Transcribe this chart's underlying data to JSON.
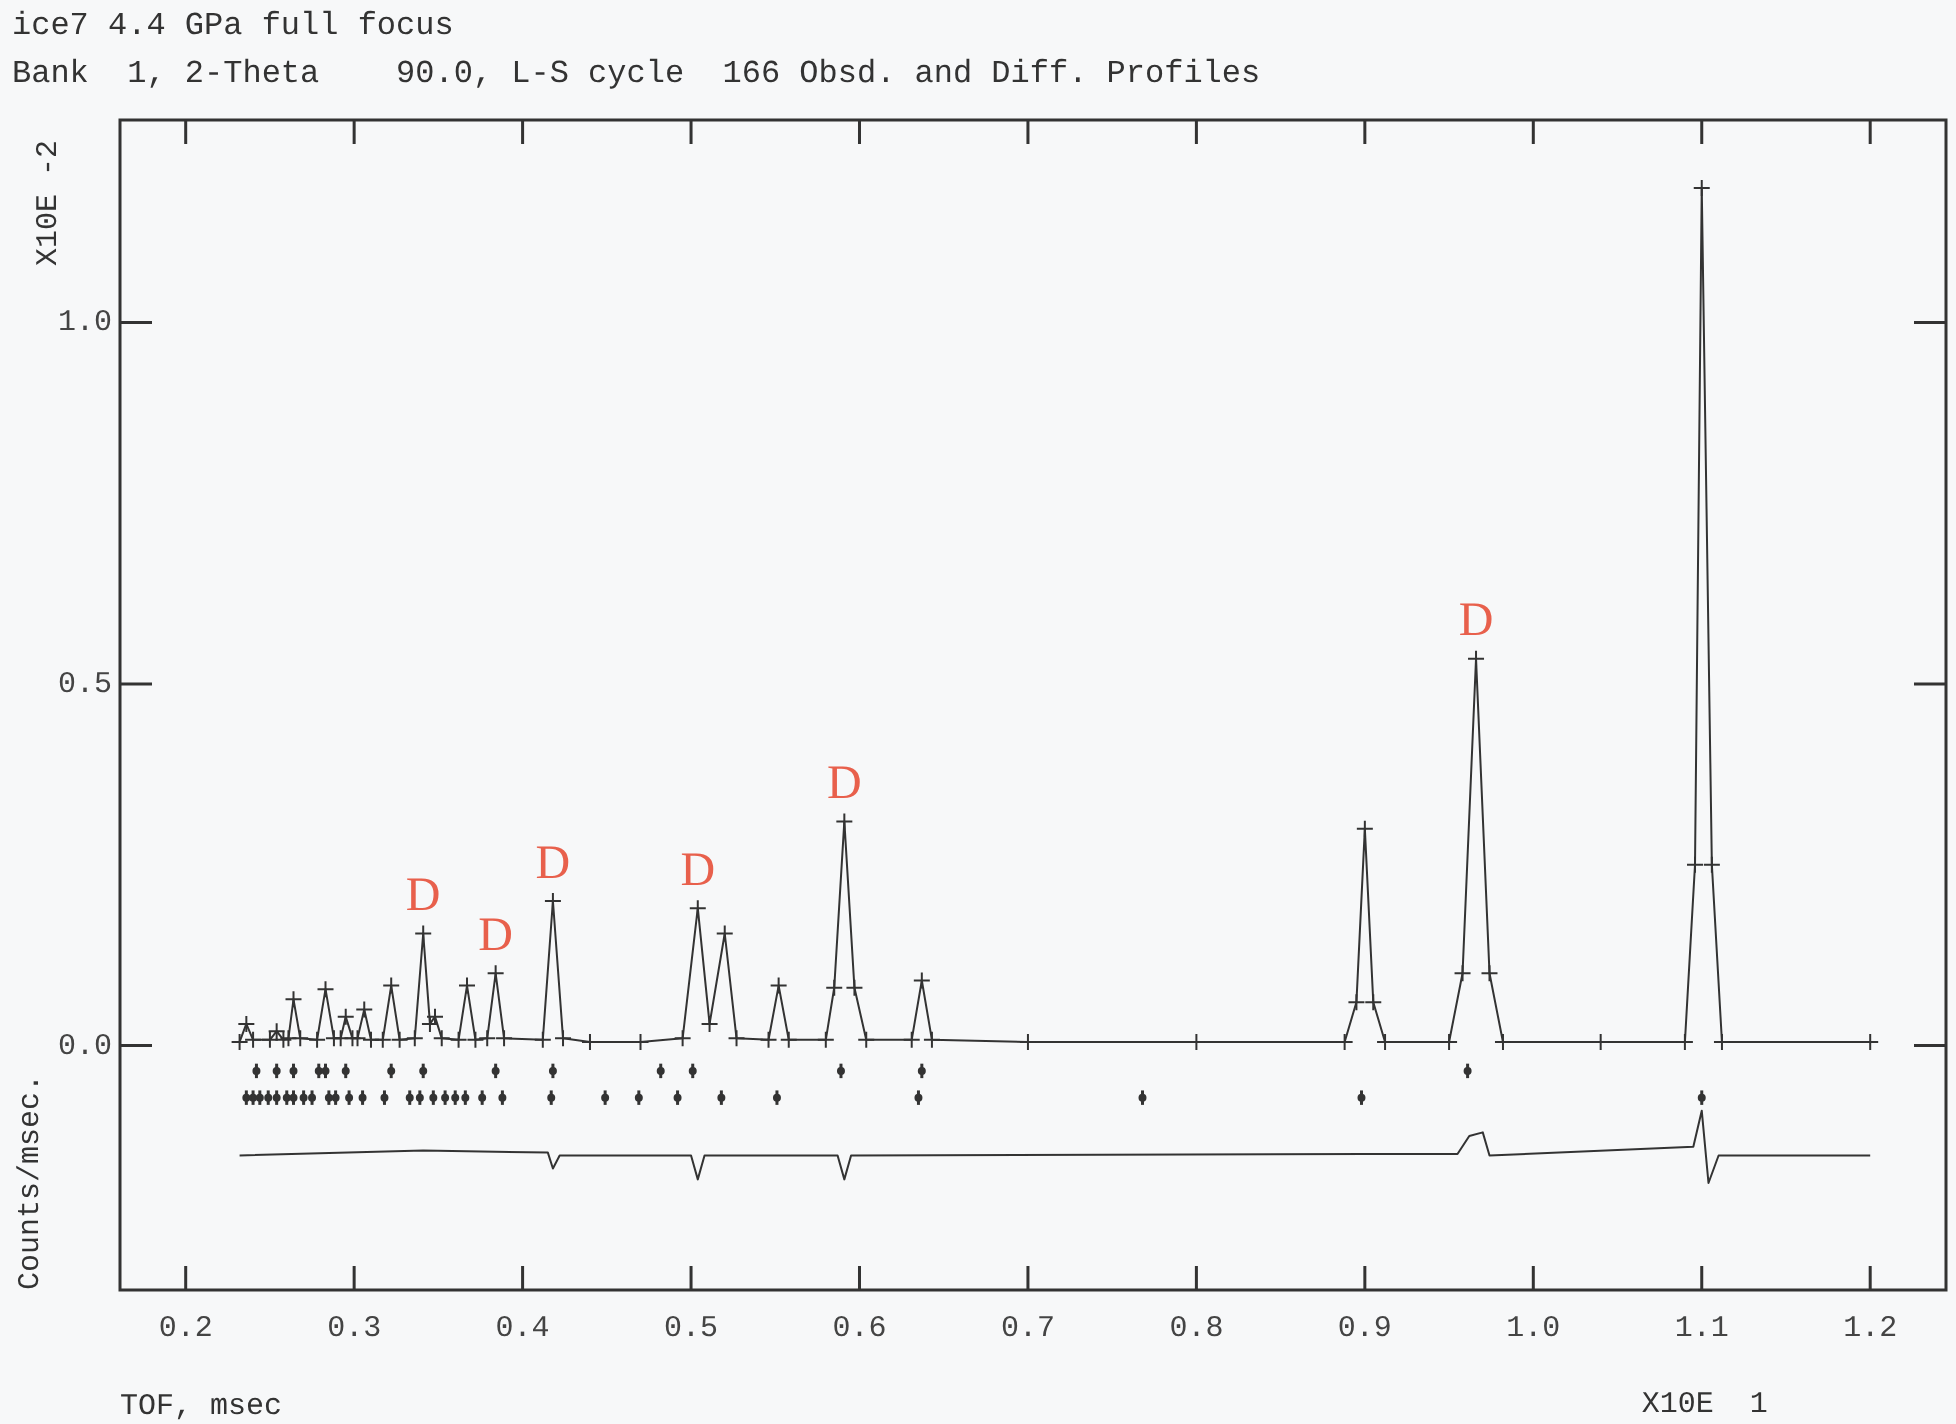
{
  "chart_data": {
    "type": "line",
    "title": "ice7 4.4 GPa full focus",
    "subtitle": "Bank  1, 2-Theta    90.0, L-S cycle  166 Obsd. and Diff. Profiles",
    "xlabel": "TOF, msec",
    "ylabel": "Counts/msec.",
    "xlim": [
      0.161,
      1.245
    ],
    "ylim": [
      -0.338,
      1.28
    ],
    "xticks": [
      0.2,
      0.3,
      0.4,
      0.5,
      0.6,
      0.7,
      0.8,
      0.9,
      {
        "value": 1,
        "label": "1.0"
      },
      1.1,
      1.2
    ],
    "yticks": [
      {
        "value": 0,
        "label": "0.0"
      },
      0.5,
      {
        "value": 1,
        "label": "1.0"
      }
    ],
    "grid": false,
    "legend": false,
    "series": [
      {
        "marker": "cross",
        "color": "#333333",
        "x": [
          0.232,
          0.236,
          0.24,
          0.25,
          0.254,
          0.258,
          0.261,
          0.264,
          0.268,
          0.278,
          0.283,
          0.288,
          0.292,
          0.295,
          0.299,
          0.302,
          0.306,
          0.31,
          0.317,
          0.322,
          0.327,
          0.336,
          0.341,
          0.345,
          0.348,
          0.352,
          0.362,
          0.367,
          0.372,
          0.379,
          0.384,
          0.389,
          0.412,
          0.418,
          0.424,
          0.44,
          0.47,
          0.495,
          0.504,
          0.511,
          0.52,
          0.527,
          0.546,
          0.552,
          0.558,
          0.58,
          0.585,
          0.591,
          0.597,
          0.604,
          0.631,
          0.637,
          0.643,
          0.7,
          0.8,
          0.888,
          0.895,
          0.9,
          0.905,
          0.912,
          0.95,
          0.958,
          0.966,
          0.974,
          0.982,
          1.04,
          1.09,
          1.096,
          1.1,
          1.106,
          1.112,
          1.2
        ],
        "values": [
          0.005,
          0.03,
          0.008,
          0.008,
          0.02,
          0.008,
          0.01,
          0.064,
          0.01,
          0.008,
          0.078,
          0.01,
          0.01,
          0.04,
          0.01,
          0.01,
          0.05,
          0.008,
          0.008,
          0.083,
          0.008,
          0.01,
          0.155,
          0.03,
          0.04,
          0.01,
          0.008,
          0.083,
          0.008,
          0.01,
          0.1,
          0.01,
          0.008,
          0.2,
          0.01,
          0.005,
          0.005,
          0.01,
          0.19,
          0.03,
          0.155,
          0.01,
          0.008,
          0.083,
          0.008,
          0.008,
          0.08,
          0.31,
          0.08,
          0.008,
          0.008,
          0.09,
          0.008,
          0.005,
          0.005,
          0.005,
          0.06,
          0.3,
          0.06,
          0.005,
          0.005,
          0.1,
          0.535,
          0.1,
          0.005,
          0.005,
          0.005,
          0.25,
          1.186,
          0.25,
          0.005,
          0.005
        ]
      },
      {
        "type": "scatter",
        "marker": "circle",
        "color": "#333333",
        "x": [
          0.242,
          0.254,
          0.264,
          0.279,
          0.283,
          0.295,
          0.322,
          0.341,
          0.384,
          0.418,
          0.482,
          0.501,
          0.589,
          0.637,
          0.961
        ],
        "values": [
          -0.035,
          -0.035,
          -0.035,
          -0.035,
          -0.035,
          -0.035,
          -0.035,
          -0.035,
          -0.035,
          -0.035,
          -0.035,
          -0.035,
          -0.035,
          -0.035,
          -0.035
        ],
        "errors": [
          0.01,
          0.01,
          0.01,
          0.01,
          0.01,
          0.01,
          0.01,
          0.01,
          0.01,
          0.01,
          0.01,
          0.01,
          0.01,
          0.01,
          0.01
        ]
      },
      {
        "type": "scatter",
        "marker": "circle",
        "color": "#333333",
        "x": [
          0.236,
          0.24,
          0.244,
          0.249,
          0.254,
          0.26,
          0.264,
          0.27,
          0.275,
          0.285,
          0.289,
          0.297,
          0.305,
          0.318,
          0.333,
          0.339,
          0.347,
          0.354,
          0.36,
          0.366,
          0.376,
          0.388,
          0.417,
          0.449,
          0.469,
          0.492,
          0.518,
          0.551,
          0.635,
          0.768,
          0.898,
          1.1
        ],
        "values": [
          -0.072,
          -0.072,
          -0.072,
          -0.072,
          -0.072,
          -0.072,
          -0.072,
          -0.072,
          -0.072,
          -0.072,
          -0.072,
          -0.072,
          -0.072,
          -0.072,
          -0.072,
          -0.072,
          -0.072,
          -0.072,
          -0.072,
          -0.072,
          -0.072,
          -0.072,
          -0.072,
          -0.072,
          -0.072,
          -0.072,
          -0.072,
          -0.072,
          -0.072,
          -0.072,
          -0.072,
          -0.072
        ],
        "errors": [
          0.01,
          0.01,
          0.01,
          0.01,
          0.01,
          0.01,
          0.01,
          0.01,
          0.01,
          0.01,
          0.01,
          0.01,
          0.01,
          0.01,
          0.01,
          0.01,
          0.01,
          0.01,
          0.01,
          0.01,
          0.01,
          0.01,
          0.01,
          0.01,
          0.01,
          0.01,
          0.01,
          0.01,
          0.01,
          0.01,
          0.01,
          0.01
        ]
      },
      {
        "marker": "none",
        "color": "#333333",
        "x": [
          0.232,
          0.341,
          0.415,
          0.418,
          0.422,
          0.5,
          0.504,
          0.508,
          0.587,
          0.591,
          0.595,
          0.9,
          0.955,
          0.962,
          0.97,
          0.974,
          1.095,
          1.1,
          1.104,
          1.11,
          1.2
        ],
        "values": [
          -0.152,
          -0.145,
          -0.148,
          -0.17,
          -0.152,
          -0.152,
          -0.185,
          -0.152,
          -0.152,
          -0.185,
          -0.152,
          -0.15,
          -0.15,
          -0.125,
          -0.12,
          -0.152,
          -0.14,
          -0.09,
          -0.19,
          -0.152,
          -0.152
        ]
      }
    ],
    "annotations": [
      "X10E -2",
      "X10E  1",
      {
        "text": "D",
        "x": 0.341,
        "y": 0.155
      },
      {
        "text": "D",
        "x": 0.384,
        "y": 0.1
      },
      {
        "text": "D",
        "x": 0.418,
        "y": 0.2
      },
      {
        "text": "D",
        "x": 0.504,
        "y": 0.19
      },
      {
        "text": "D",
        "x": 0.591,
        "y": 0.31
      },
      {
        "text": "D",
        "x": 0.966,
        "y": 0.535
      }
    ]
  }
}
